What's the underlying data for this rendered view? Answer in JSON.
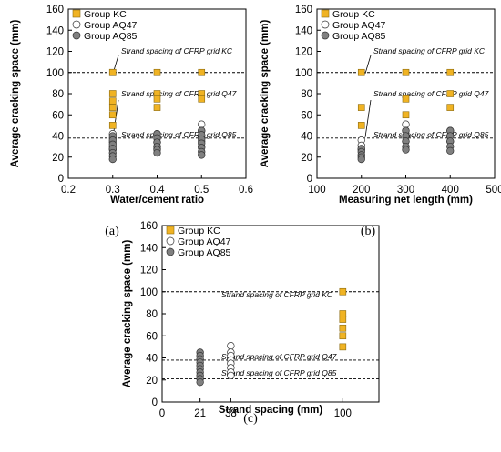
{
  "chart_data": [
    {
      "panel": "(a)",
      "type": "scatter",
      "xlabel": "Water/cement ratio",
      "ylabel": "Average cracking space (mm)",
      "xlim": [
        0.2,
        0.6
      ],
      "ylim": [
        0,
        160
      ],
      "xticks": [
        "0.2",
        "0.3",
        "0.4",
        "0.5",
        "0.6"
      ],
      "yticks": [
        "0",
        "20",
        "40",
        "60",
        "80",
        "100",
        "120",
        "140",
        "160"
      ],
      "legend_position": "top-left",
      "series": [
        {
          "name": "Group KC",
          "marker": "square",
          "color": "#F0B323",
          "points": [
            [
              0.3,
              100
            ],
            [
              0.3,
              100
            ],
            [
              0.3,
              80
            ],
            [
              0.3,
              73
            ],
            [
              0.3,
              67
            ],
            [
              0.3,
              60
            ],
            [
              0.3,
              50
            ],
            [
              0.4,
              100
            ],
            [
              0.4,
              80
            ],
            [
              0.4,
              75
            ],
            [
              0.4,
              67
            ],
            [
              0.5,
              100
            ],
            [
              0.5,
              80
            ],
            [
              0.5,
              75
            ]
          ]
        },
        {
          "name": "Group AQ47",
          "marker": "circle",
          "color": "#FFFFFF",
          "points": [
            [
              0.3,
              42
            ],
            [
              0.3,
              38
            ],
            [
              0.3,
              34
            ],
            [
              0.3,
              30
            ],
            [
              0.3,
              27
            ],
            [
              0.4,
              42
            ],
            [
              0.4,
              38
            ],
            [
              0.4,
              34
            ],
            [
              0.4,
              30
            ],
            [
              0.4,
              28
            ],
            [
              0.5,
              51
            ],
            [
              0.5,
              45
            ],
            [
              0.5,
              40
            ],
            [
              0.5,
              35
            ],
            [
              0.5,
              30
            ]
          ]
        },
        {
          "name": "Group AQ85",
          "marker": "circle",
          "color": "#808080",
          "points": [
            [
              0.3,
              40
            ],
            [
              0.3,
              36
            ],
            [
              0.3,
              32
            ],
            [
              0.3,
              28
            ],
            [
              0.3,
              24
            ],
            [
              0.3,
              21
            ],
            [
              0.3,
              18
            ],
            [
              0.4,
              42
            ],
            [
              0.4,
              38
            ],
            [
              0.4,
              34
            ],
            [
              0.4,
              30
            ],
            [
              0.4,
              27
            ],
            [
              0.4,
              24
            ],
            [
              0.5,
              45
            ],
            [
              0.5,
              41
            ],
            [
              0.5,
              37
            ],
            [
              0.5,
              33
            ],
            [
              0.5,
              29
            ],
            [
              0.5,
              25
            ],
            [
              0.5,
              22
            ]
          ]
        }
      ],
      "reference_lines": [
        {
          "y": 100,
          "label": "Strand spacing of CFRP grid KC"
        },
        {
          "y": 38,
          "label": "Strand spacing of CFRP grid Q47"
        },
        {
          "y": 21,
          "label": "Strand spacing of CFRP grid Q85"
        }
      ]
    },
    {
      "panel": "(b)",
      "type": "scatter",
      "xlabel": "Measuring net length (mm)",
      "ylabel": "Average cracking space (mm)",
      "xlim": [
        100,
        500
      ],
      "ylim": [
        0,
        160
      ],
      "xticks": [
        "100",
        "200",
        "300",
        "400",
        "500"
      ],
      "yticks": [
        "0",
        "20",
        "40",
        "60",
        "80",
        "100",
        "120",
        "140",
        "160"
      ],
      "legend_position": "top-left",
      "series": [
        {
          "name": "Group KC",
          "marker": "square",
          "color": "#F0B323",
          "points": [
            [
              200,
              100
            ],
            [
              200,
              67
            ],
            [
              200,
              50
            ],
            [
              300,
              100
            ],
            [
              300,
              75
            ],
            [
              300,
              60
            ],
            [
              400,
              100
            ],
            [
              400,
              80
            ],
            [
              400,
              67
            ]
          ]
        },
        {
          "name": "Group AQ47",
          "marker": "circle",
          "color": "#FFFFFF",
          "points": [
            [
              200,
              36
            ],
            [
              200,
              31
            ],
            [
              200,
              27
            ],
            [
              300,
              51
            ],
            [
              300,
              45
            ],
            [
              300,
              40
            ],
            [
              300,
              35
            ],
            [
              400,
              45
            ],
            [
              400,
              40
            ],
            [
              400,
              35
            ]
          ]
        },
        {
          "name": "Group AQ85",
          "marker": "circle",
          "color": "#808080",
          "points": [
            [
              200,
              28
            ],
            [
              200,
              25
            ],
            [
              200,
              22
            ],
            [
              200,
              20
            ],
            [
              200,
              18
            ],
            [
              300,
              45
            ],
            [
              300,
              40
            ],
            [
              300,
              35
            ],
            [
              300,
              30
            ],
            [
              300,
              27
            ],
            [
              400,
              45
            ],
            [
              400,
              40
            ],
            [
              400,
              35
            ],
            [
              400,
              30
            ],
            [
              400,
              26
            ]
          ]
        }
      ],
      "reference_lines": [
        {
          "y": 100,
          "label": "Strand spacing of CFRP grid KC"
        },
        {
          "y": 38,
          "label": "Strand spacing of CFRP grid Q47"
        },
        {
          "y": 21,
          "label": "Strand spacing of CFRP grid Q85"
        }
      ]
    },
    {
      "panel": "(c)",
      "type": "scatter",
      "xlabel": "Strand spacing (mm)",
      "ylabel": "Average cracking space (mm)",
      "xlim": [
        0,
        120
      ],
      "ylim": [
        0,
        160
      ],
      "xticks": [
        "0",
        "21",
        "38",
        "100"
      ],
      "xtick_values": [
        0,
        21,
        38,
        100
      ],
      "yticks": [
        "0",
        "20",
        "40",
        "60",
        "80",
        "100",
        "120",
        "140",
        "160"
      ],
      "legend_position": "top-left",
      "series": [
        {
          "name": "Group KC",
          "marker": "square",
          "color": "#F0B323",
          "points": [
            [
              100,
              100
            ],
            [
              100,
              80
            ],
            [
              100,
              75
            ],
            [
              100,
              67
            ],
            [
              100,
              60
            ],
            [
              100,
              50
            ]
          ]
        },
        {
          "name": "Group AQ47",
          "marker": "circle",
          "color": "#FFFFFF",
          "points": [
            [
              38,
              51
            ],
            [
              38,
              45
            ],
            [
              38,
              42
            ],
            [
              38,
              38
            ],
            [
              38,
              35
            ],
            [
              38,
              31
            ],
            [
              38,
              27
            ],
            [
              38,
              24
            ]
          ]
        },
        {
          "name": "Group AQ85",
          "marker": "circle",
          "color": "#808080",
          "points": [
            [
              21,
              45
            ],
            [
              21,
              42
            ],
            [
              21,
              39
            ],
            [
              21,
              36
            ],
            [
              21,
              33
            ],
            [
              21,
              30
            ],
            [
              21,
              27
            ],
            [
              21,
              24
            ],
            [
              21,
              21
            ],
            [
              21,
              18
            ]
          ]
        }
      ],
      "reference_lines": [
        {
          "y": 100,
          "label": "Strand spacing of CFRP grid KC"
        },
        {
          "y": 38,
          "label": "Strand spacing of CFRP grid Q47"
        },
        {
          "y": 21,
          "label": "Strand spacing of CFRP grid Q85"
        }
      ]
    }
  ]
}
